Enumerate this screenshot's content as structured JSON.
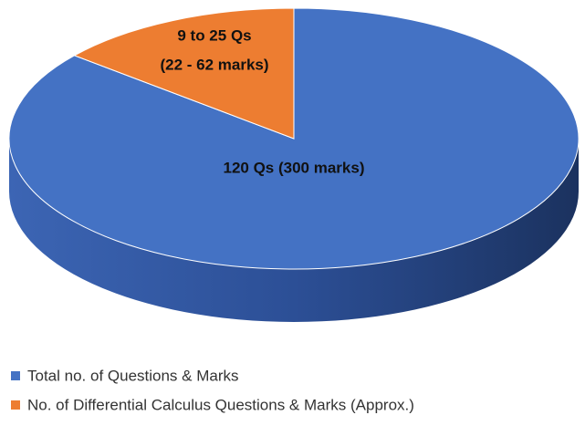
{
  "chart_data": {
    "type": "pie3d",
    "categories": [
      "Total no. of Questions & Marks",
      "No. of Differential Calculus Questions & Marks (Approx.)"
    ],
    "values": [
      86,
      14
    ],
    "colors": [
      "#4472c4",
      "#ed7d31"
    ],
    "slice_labels": [
      [
        "120 Qs (300 marks)"
      ],
      [
        "9 to 25 Qs",
        "(22 - 62 marks)"
      ]
    ],
    "legend": "bottom"
  }
}
